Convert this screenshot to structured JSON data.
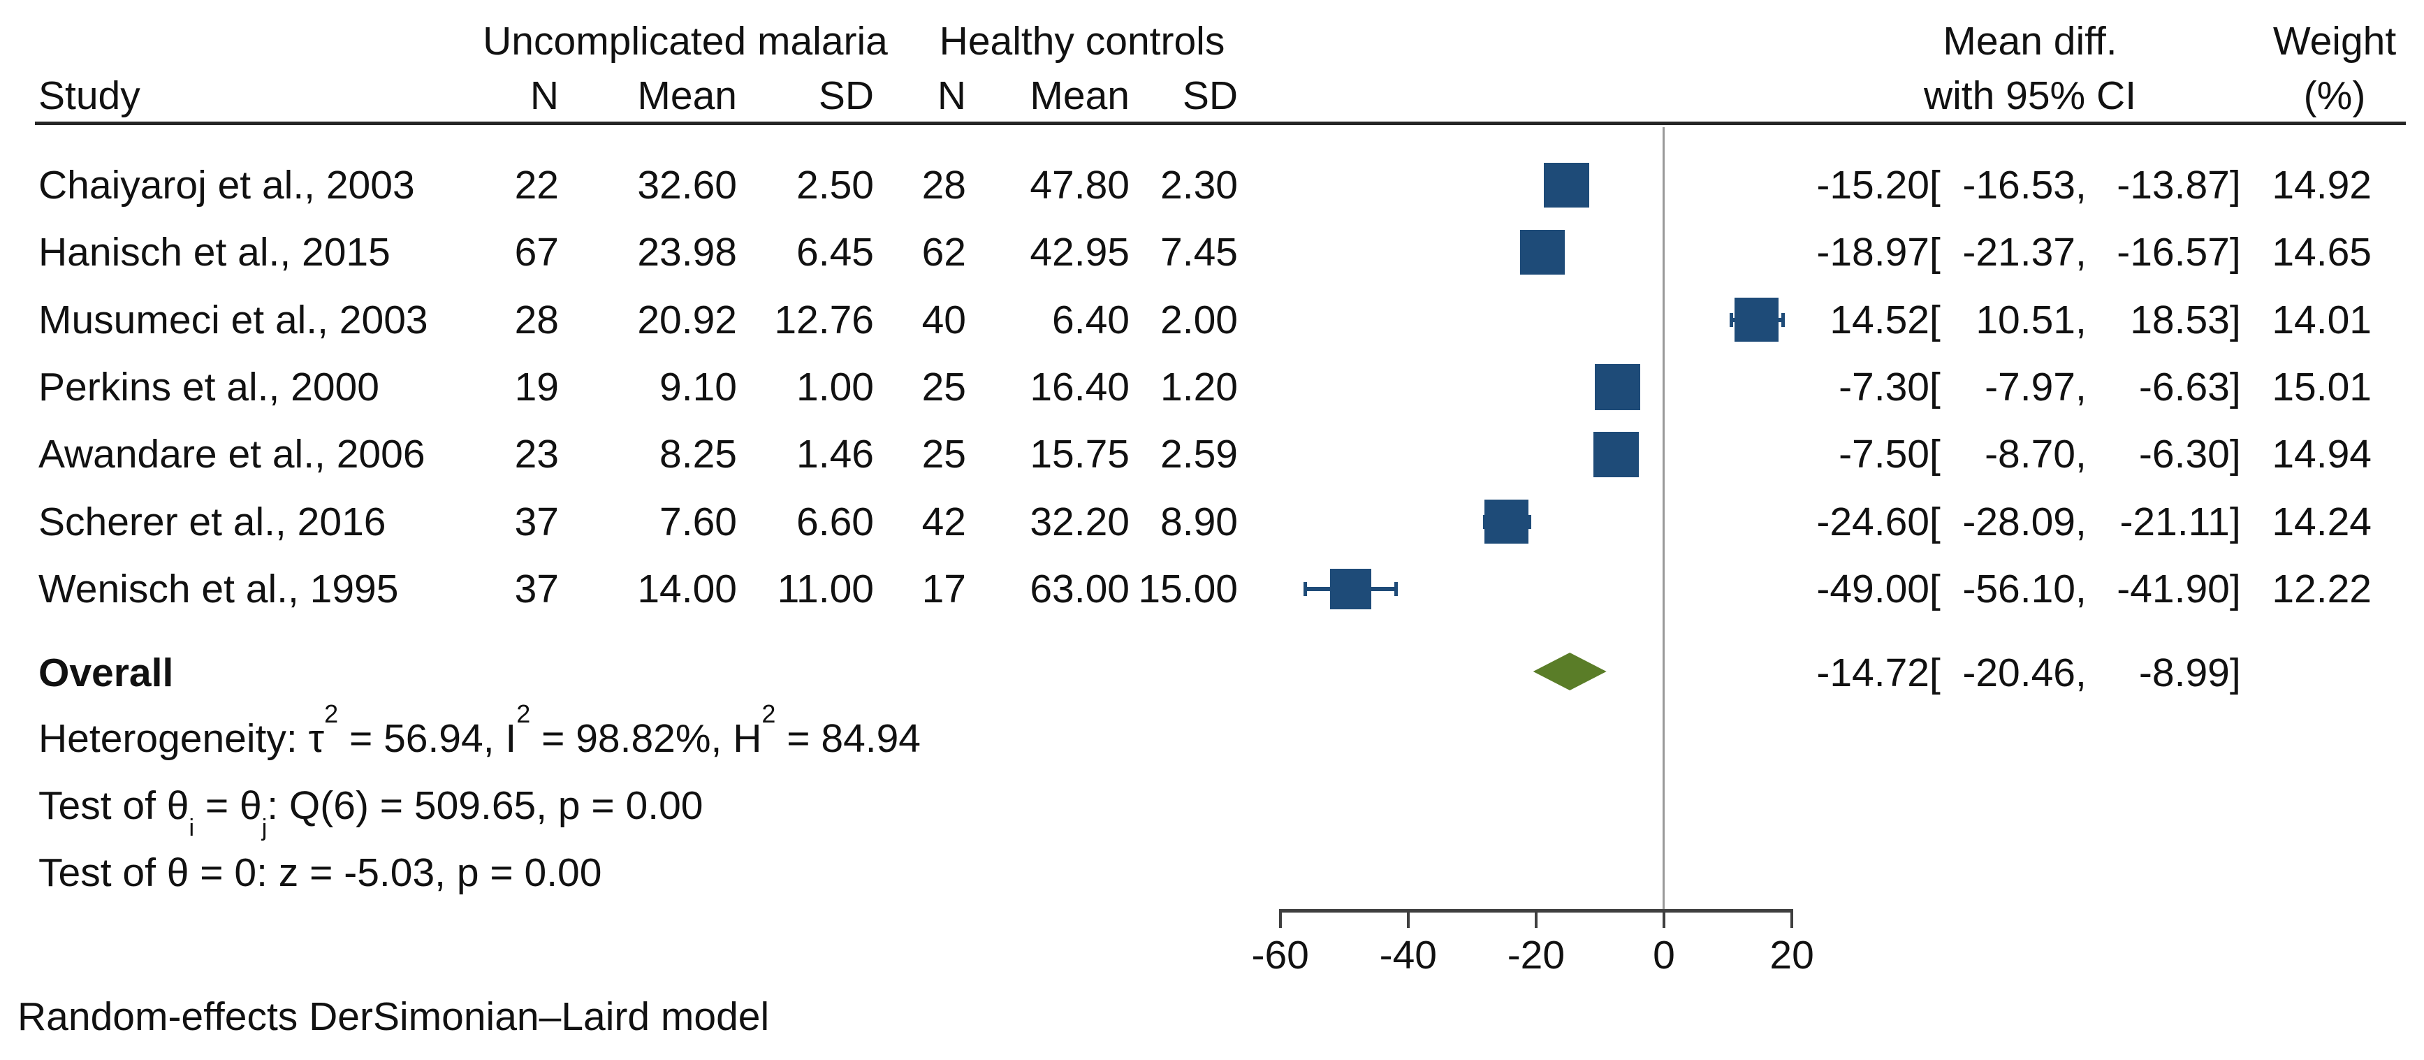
{
  "chart_data": {
    "type": "forest",
    "title": "",
    "header": {
      "group1": "Uncomplicated malaria",
      "group2": "Healthy controls",
      "study": "Study",
      "n": "N",
      "mean": "Mean",
      "sd": "SD",
      "effect_line1": "Mean diff.",
      "effect_line2": "with 95% CI",
      "weight_line1": "Weight",
      "weight_line2": "(%)"
    },
    "studies": [
      {
        "name": "Chaiyaroj et al., 2003",
        "n1": "22",
        "mean1": "32.60",
        "sd1": "2.50",
        "n2": "28",
        "mean2": "47.80",
        "sd2": "2.30",
        "est": -15.2,
        "lo": -16.53,
        "hi": -13.87,
        "weight": 14.92
      },
      {
        "name": "Hanisch et al., 2015",
        "n1": "67",
        "mean1": "23.98",
        "sd1": "6.45",
        "n2": "62",
        "mean2": "42.95",
        "sd2": "7.45",
        "est": -18.97,
        "lo": -21.37,
        "hi": -16.57,
        "weight": 14.65
      },
      {
        "name": "Musumeci et al., 2003",
        "n1": "28",
        "mean1": "20.92",
        "sd1": "12.76",
        "n2": "40",
        "mean2": "6.40",
        "sd2": "2.00",
        "est": 14.52,
        "lo": 10.51,
        "hi": 18.53,
        "weight": 14.01
      },
      {
        "name": "Perkins et al., 2000",
        "n1": "19",
        "mean1": "9.10",
        "sd1": "1.00",
        "n2": "25",
        "mean2": "16.40",
        "sd2": "1.20",
        "est": -7.3,
        "lo": -7.97,
        "hi": -6.63,
        "weight": 15.01
      },
      {
        "name": "Awandare et al., 2006",
        "n1": "23",
        "mean1": "8.25",
        "sd1": "1.46",
        "n2": "25",
        "mean2": "15.75",
        "sd2": "2.59",
        "est": -7.5,
        "lo": -8.7,
        "hi": -6.3,
        "weight": 14.94
      },
      {
        "name": "Scherer et al., 2016",
        "n1": "37",
        "mean1": "7.60",
        "sd1": "6.60",
        "n2": "42",
        "mean2": "32.20",
        "sd2": "8.90",
        "est": -24.6,
        "lo": -28.09,
        "hi": -21.11,
        "weight": 14.24
      },
      {
        "name": "Wenisch et al., 1995",
        "n1": "37",
        "mean1": "14.00",
        "sd1": "11.00",
        "n2": "17",
        "mean2": "63.00",
        "sd2": "15.00",
        "est": -49.0,
        "lo": -56.1,
        "hi": -41.9,
        "weight": 12.22
      }
    ],
    "overall": {
      "label": "Overall",
      "est": -14.72,
      "lo": -20.46,
      "hi": -8.99
    },
    "stats": {
      "heterogeneity": [
        {
          "t": "Heterogeneity: τ"
        },
        {
          "t": "2",
          "s": "sup"
        },
        {
          "t": " = 56.94, I"
        },
        {
          "t": "2",
          "s": "sup"
        },
        {
          "t": " = 98.82%, H"
        },
        {
          "t": "2",
          "s": "sup"
        },
        {
          "t": " = 84.94"
        }
      ],
      "test_between": [
        {
          "t": "Test of θ"
        },
        {
          "t": "i",
          "s": "sub"
        },
        {
          "t": " = θ"
        },
        {
          "t": "j",
          "s": "sub"
        },
        {
          "t": ": Q(6) = 509.65, p = 0.00"
        }
      ],
      "test_zero": [
        {
          "t": "Test of θ = 0: z = -5.03, p = 0.00"
        }
      ]
    },
    "axis": {
      "ticks": [
        -60,
        -40,
        -20,
        0,
        20
      ],
      "xlim": [
        -60,
        20
      ],
      "zero_reference_line": true
    },
    "footer": "Random-effects DerSimonian–Laird model",
    "colors": {
      "marker": "#1e4b78",
      "diamond": "#5a7d28",
      "zero_line": "#999999",
      "axis": "#3f3f3f",
      "text": "#111111",
      "rule": "#262626"
    },
    "legend": null
  }
}
